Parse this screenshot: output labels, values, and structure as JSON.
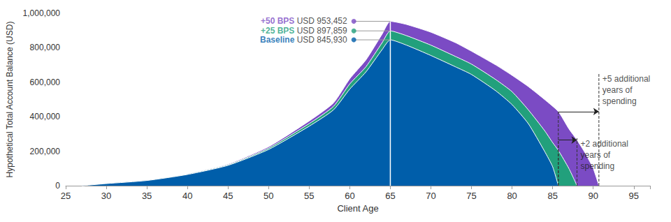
{
  "chart_data": {
    "type": "area",
    "x_label": "Client Age",
    "y_label": "Hypothetical Total Account Balance (USD)",
    "xlim": [
      25,
      97
    ],
    "xticks": [
      25,
      30,
      35,
      40,
      45,
      50,
      55,
      60,
      65,
      70,
      75,
      80,
      85,
      90,
      95
    ],
    "ylim": [
      0,
      1000000
    ],
    "yticks": [
      0,
      {
        "value": 200000,
        "label": "200,000"
      },
      {
        "value": 400000,
        "label": "400,000"
      },
      {
        "value": 600000,
        "label": "600,000"
      },
      {
        "value": 800000,
        "label": "800,000"
      },
      {
        "value": 1000000,
        "label": "1,000,000"
      }
    ],
    "grid": false,
    "series": [
      {
        "name": "+50 BPS",
        "color": "#7b4bc4",
        "x": [
          27,
          30,
          35,
          40,
          45,
          50,
          55,
          58,
          60,
          62,
          64,
          65,
          67,
          70,
          73,
          75,
          78,
          80,
          82,
          84,
          85.7,
          87,
          88,
          89,
          90,
          90.7
        ],
        "values": [
          0,
          13000,
          32000,
          69000,
          126000,
          226000,
          375000,
          480000,
          620000,
          730000,
          880000,
          953452,
          935000,
          890000,
          830000,
          780000,
          700000,
          640000,
          575000,
          500000,
          430000,
          330000,
          265000,
          190000,
          100000,
          0
        ]
      },
      {
        "name": "+25 BPS",
        "color": "#22a07c",
        "x": [
          27,
          30,
          35,
          40,
          45,
          50,
          55,
          58,
          60,
          62,
          64,
          65,
          67,
          70,
          73,
          75,
          78,
          80,
          82,
          84,
          85,
          85.7,
          87,
          88
        ],
        "values": [
          0,
          12500,
          31000,
          67000,
          122000,
          218000,
          360000,
          460000,
          590000,
          690000,
          830000,
          897859,
          870000,
          815000,
          750000,
          705000,
          615000,
          545000,
          440000,
          320000,
          250000,
          205000,
          100000,
          0
        ]
      },
      {
        "name": "Baseline",
        "color": "#005eaa",
        "x": [
          27,
          30,
          35,
          40,
          45,
          50,
          55,
          58,
          60,
          62,
          64,
          65,
          67,
          70,
          73,
          75,
          78,
          80,
          82,
          84,
          85,
          85.7
        ],
        "values": [
          0,
          12000,
          30000,
          65000,
          118000,
          210000,
          345000,
          440000,
          560000,
          660000,
          790000,
          845930,
          815000,
          755000,
          690000,
          645000,
          550000,
          470000,
          360000,
          200000,
          110000,
          0
        ]
      }
    ],
    "divider_x": 65,
    "peak_labels": [
      {
        "series": "+50 BPS",
        "x": 60.5,
        "value": 953452,
        "label": "USD 953,452"
      },
      {
        "series": "+25 BPS",
        "x": 60.5,
        "value": 897859,
        "label": "USD 897,859"
      },
      {
        "series": "Baseline",
        "x": 60.5,
        "value": 845930,
        "label": "USD 845,930"
      }
    ],
    "spending_annotations": [
      {
        "text": "+5 additional\nyears of\nspending",
        "x_from": 85.7,
        "x_to": 90.7,
        "y": 430000,
        "label_y": 650000
      },
      {
        "text": "+2 additional\nyears of\nspending",
        "x_from": 85.7,
        "x_to": 88,
        "y": 265000,
        "label_y": 275000
      }
    ]
  }
}
